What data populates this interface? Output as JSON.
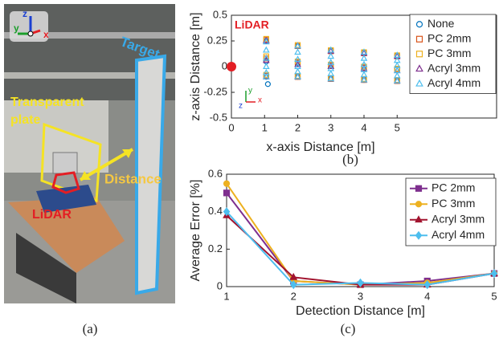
{
  "photo": {
    "labels": [
      "z",
      "y",
      "x",
      "Target",
      "Transparent",
      "plate",
      "Distance",
      "LiDAR"
    ],
    "caption": "(a)"
  },
  "chart_data": [
    {
      "type": "scatter",
      "caption": "(b)",
      "xlabel": "x-axis Distance [m]",
      "ylabel": "z-axis Distance [m]",
      "annotations": [
        "LiDAR",
        "y",
        "z",
        "x"
      ],
      "xlim": [
        0,
        8
      ],
      "xticks": [
        0,
        1,
        2,
        3,
        4,
        5
      ],
      "ylim": [
        -0.5,
        0.5
      ],
      "yticks": [
        0.5,
        0.25,
        0,
        -0.25,
        -0.5
      ],
      "legend": "upper right",
      "series": [
        {
          "name": "None",
          "color": "#0072bd",
          "marker": "circle",
          "x": [
            1.05,
            1.05,
            1.05,
            1.1,
            2,
            2,
            2,
            3,
            3,
            3,
            4,
            4,
            4,
            5,
            5,
            5
          ],
          "y": [
            0.25,
            0.05,
            -0.1,
            -0.17,
            0.2,
            0.03,
            -0.1,
            0.16,
            0.02,
            -0.12,
            0.14,
            0,
            -0.13,
            0.11,
            -0.02,
            -0.14
          ]
        },
        {
          "name": "PC 2mm",
          "color": "#d95319",
          "marker": "square",
          "x": [
            1.05,
            1.05,
            1.05,
            2,
            2,
            2,
            3,
            3,
            3,
            4,
            4,
            4,
            5,
            5,
            5
          ],
          "y": [
            0.26,
            0.08,
            -0.09,
            0.2,
            0.04,
            -0.1,
            0.15,
            0.01,
            -0.12,
            0.13,
            -0.01,
            -0.13,
            0.1,
            -0.03,
            -0.14
          ]
        },
        {
          "name": "PC 3mm",
          "color": "#edb120",
          "marker": "square",
          "x": [
            1.05,
            1.05,
            1.05,
            2,
            2,
            2,
            3,
            3,
            3,
            4,
            4,
            4,
            5,
            5,
            5
          ],
          "y": [
            0.27,
            0.1,
            -0.08,
            0.21,
            0.05,
            -0.09,
            0.16,
            0.02,
            -0.11,
            0.14,
            0,
            -0.12,
            0.11,
            -0.02,
            -0.13
          ]
        },
        {
          "name": "Acryl 3mm",
          "color": "#7e2f8e",
          "marker": "triangle",
          "x": [
            1.05,
            1.05,
            1.05,
            2,
            2,
            2,
            3,
            3,
            3,
            4,
            4,
            4,
            5,
            5,
            5
          ],
          "y": [
            0.25,
            0.06,
            -0.1,
            0.2,
            0.02,
            -0.1,
            0.15,
            0,
            -0.12,
            0.13,
            -0.02,
            -0.13,
            0.1,
            -0.04,
            -0.14
          ]
        },
        {
          "name": "Acryl 4mm",
          "color": "#4dbeee",
          "marker": "triangle",
          "x": [
            1.05,
            1.05,
            1.05,
            1.05,
            1.05,
            1.05,
            2,
            2,
            2,
            2,
            2,
            2,
            3,
            3,
            3,
            3,
            3,
            3,
            4,
            4,
            4,
            4,
            4,
            4,
            5,
            5,
            5,
            5,
            5,
            5
          ],
          "y": [
            0.24,
            0.16,
            0.08,
            0,
            -0.06,
            -0.1,
            0.2,
            0.14,
            0.07,
            0,
            -0.05,
            -0.1,
            0.16,
            0.1,
            0.04,
            -0.02,
            -0.07,
            -0.12,
            0.14,
            0.08,
            0.02,
            -0.03,
            -0.08,
            -0.13,
            0.11,
            0.06,
            0.01,
            -0.04,
            -0.09,
            -0.14
          ]
        }
      ]
    },
    {
      "type": "line",
      "caption": "(c)",
      "xlabel": "Detection Distance [m]",
      "ylabel": "Average Error [%]",
      "x": [
        1,
        2,
        3,
        4,
        5
      ],
      "xlim": [
        1,
        5
      ],
      "xticks": [
        1,
        2,
        3,
        4,
        5
      ],
      "ylim": [
        0,
        0.6
      ],
      "yticks": [
        0,
        0.2,
        0.4,
        0.6
      ],
      "legend": "upper right",
      "series": [
        {
          "name": "PC 2mm",
          "color": "#7e2f8e",
          "marker": "square",
          "values": [
            0.5,
            0.03,
            0.01,
            0.03,
            0.07
          ]
        },
        {
          "name": "PC 3mm",
          "color": "#edb120",
          "marker": "circle",
          "values": [
            0.55,
            0.03,
            0.01,
            0.02,
            0.07
          ]
        },
        {
          "name": "Acryl 3mm",
          "color": "#a2142f",
          "marker": "triangle",
          "values": [
            0.38,
            0.05,
            0.01,
            0.01,
            0.07
          ]
        },
        {
          "name": "Acryl 4mm",
          "color": "#4dbeee",
          "marker": "diamond",
          "values": [
            0.4,
            0.01,
            0.02,
            0.01,
            0.07
          ]
        }
      ]
    }
  ]
}
